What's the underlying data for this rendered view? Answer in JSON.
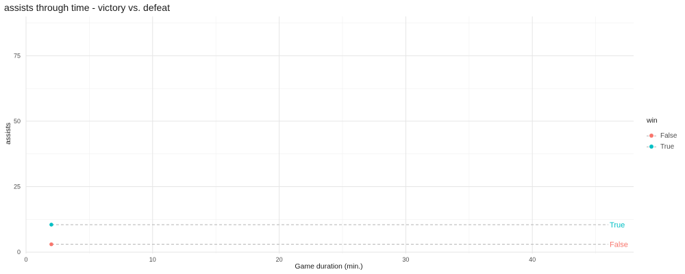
{
  "chart_data": {
    "type": "line",
    "title": "assists  through time - victory vs. defeat",
    "xlabel": "Game duration (min.)",
    "ylabel": "assists",
    "xlim": [
      0,
      48
    ],
    "ylim": [
      -0.5,
      90
    ],
    "x_ticks": [
      0,
      10,
      20,
      30,
      40
    ],
    "y_ticks": [
      0,
      25,
      50,
      75
    ],
    "grid": true,
    "legend": {
      "title": "win",
      "placement": "right"
    },
    "series": [
      {
        "name": "False",
        "color": "#F8766D",
        "points": [
          {
            "x": 2,
            "y": 3
          }
        ],
        "reference_y": 3,
        "reference_x_end": 46,
        "end_label": "False"
      },
      {
        "name": "True",
        "color": "#00BFC4",
        "points": [
          {
            "x": 2,
            "y": 10.5
          }
        ],
        "reference_y": 10.5,
        "reference_x_end": 46,
        "end_label": "True"
      }
    ]
  }
}
